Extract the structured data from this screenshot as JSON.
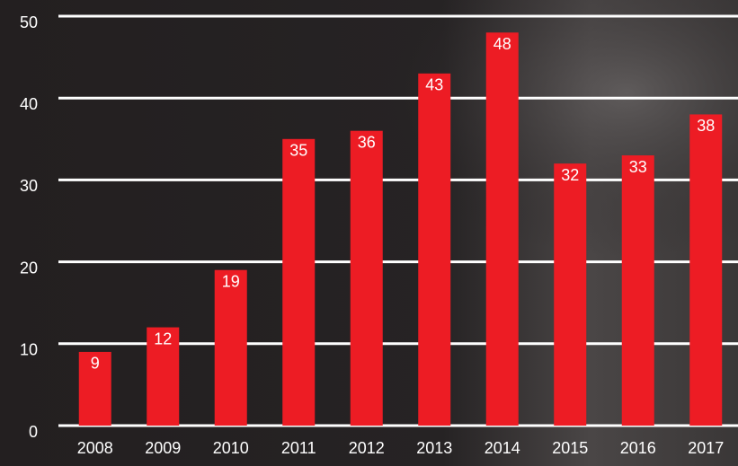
{
  "chart_data": {
    "type": "bar",
    "categories": [
      "2008",
      "2009",
      "2010",
      "2011",
      "2012",
      "2013",
      "2014",
      "2015",
      "2016",
      "2017"
    ],
    "values": [
      9,
      12,
      19,
      35,
      36,
      43,
      48,
      32,
      33,
      38
    ],
    "color": "#ed1c24",
    "ylim": [
      0,
      50
    ],
    "yticks": [
      0,
      10,
      20,
      30,
      40,
      50
    ],
    "grid": true
  }
}
